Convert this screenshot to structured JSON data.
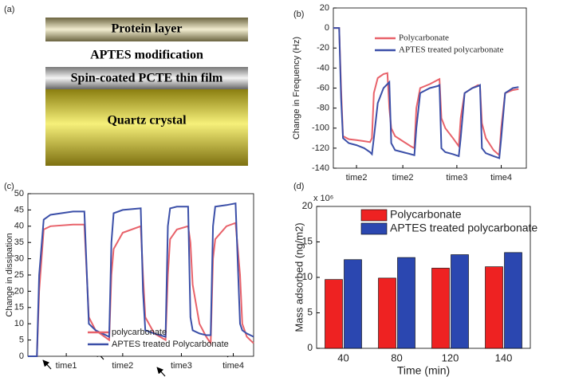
{
  "diagram": {
    "label": "(a)",
    "layers": [
      "Protein layer",
      "APTES modification",
      "Spin-coated PCTE thin film",
      "Quartz crystal"
    ]
  },
  "chart_data": [
    {
      "type": "line",
      "panel_label": "(b)",
      "ylabel": "Change in Frequency (Hz)",
      "x": [
        0,
        3,
        4,
        5,
        8,
        12,
        16,
        19,
        20,
        21,
        23,
        26,
        28,
        29,
        30,
        32,
        36,
        40,
        42,
        43,
        45,
        50,
        54,
        55,
        56,
        58,
        62,
        65,
        66,
        68,
        72,
        75,
        76,
        77,
        79,
        83,
        86,
        87,
        89,
        93,
        96
      ],
      "xlim": [
        0,
        100
      ],
      "xticks": [
        {
          "value": 12,
          "label": "time2"
        },
        {
          "value": 36,
          "label": "time2"
        },
        {
          "value": 64,
          "label": "time3"
        },
        {
          "value": 87,
          "label": "time4"
        }
      ],
      "ylim": [
        -140,
        20
      ],
      "yticks": [
        -140,
        -120,
        -100,
        -80,
        -60,
        -40,
        -20,
        0,
        20
      ],
      "legend": "upper right",
      "series": [
        {
          "name": "Polycarbonate",
          "color": "#e8626a",
          "values": [
            0,
            0,
            -60,
            -108,
            -111,
            -112,
            -113,
            -114,
            -110,
            -65,
            -50,
            -46,
            -45,
            -80,
            -100,
            -108,
            -113,
            -118,
            -120,
            -80,
            -60,
            -56,
            -52,
            -51,
            -90,
            -100,
            -110,
            -118,
            -90,
            -65,
            -60,
            -57,
            -58,
            -95,
            -110,
            -122,
            -127,
            -100,
            -65,
            -62,
            -61
          ]
        },
        {
          "name": "APTES treated polycarbonate",
          "color": "#3b4fa8",
          "values": [
            0,
            0,
            -70,
            -110,
            -115,
            -117,
            -120,
            -124,
            -126,
            -110,
            -75,
            -60,
            -56,
            -54,
            -115,
            -122,
            -124,
            -126,
            -127,
            -100,
            -65,
            -60,
            -58,
            -57,
            -120,
            -124,
            -126,
            -128,
            -110,
            -65,
            -60,
            -58,
            -57,
            -120,
            -125,
            -128,
            -130,
            -110,
            -65,
            -60,
            -59
          ]
        }
      ]
    },
    {
      "type": "line",
      "panel_label": "(c)",
      "ylabel": "Change in dissipation",
      "x": [
        0,
        4,
        5,
        7,
        10,
        20,
        25,
        27,
        30,
        36,
        37,
        38,
        42,
        50,
        51,
        52,
        56,
        61,
        62,
        63,
        66,
        71,
        72,
        73,
        76,
        79,
        81,
        82,
        83,
        88,
        92,
        94,
        95,
        97,
        100
      ],
      "xlim": [
        0,
        100
      ],
      "xticks": [
        {
          "value": 17,
          "label": "time1"
        },
        {
          "value": 42,
          "label": "time2"
        },
        {
          "value": 68,
          "label": "time3"
        },
        {
          "value": 91,
          "label": "time4"
        }
      ],
      "ylim": [
        0,
        50
      ],
      "yticks": [
        0,
        5,
        10,
        15,
        20,
        25,
        30,
        35,
        40,
        45,
        50
      ],
      "legend": "lower center",
      "series": [
        {
          "name": "polycarbonate",
          "color": "#e8626a",
          "values": [
            0,
            0,
            20,
            39,
            40,
            40.5,
            40.5,
            12,
            8,
            5,
            25,
            33,
            38,
            40,
            25,
            12,
            7,
            5,
            25,
            36,
            39,
            40,
            35,
            22,
            10,
            6,
            4,
            30,
            36,
            40,
            41,
            25,
            10,
            6,
            4
          ]
        },
        {
          "name": "APTES treated Polycarbonate",
          "color": "#3b4fa8",
          "values": [
            0,
            0,
            25,
            42,
            43.5,
            44.5,
            44.5,
            10,
            8,
            6,
            35,
            44,
            45,
            45.5,
            20,
            8,
            7,
            6,
            40,
            45.5,
            46,
            46,
            12,
            8,
            7,
            6.5,
            6.5,
            40,
            46,
            46.5,
            47,
            10,
            8,
            7,
            6
          ]
        }
      ]
    },
    {
      "type": "bar",
      "panel_label": "(d)",
      "ylabel": "Mass adsorbed (ng/m2)",
      "xlabel": "Time (min)",
      "axis_multiplier": "x 10⁶",
      "categories": [
        "40",
        "80",
        "120",
        "140"
      ],
      "ylim": [
        0,
        20
      ],
      "yticks": [
        0,
        5,
        10,
        15,
        20
      ],
      "legend": "upper center",
      "series": [
        {
          "name": "Polycarbonate",
          "color": "#ee2222",
          "values": [
            9.7,
            9.9,
            11.3,
            11.5
          ]
        },
        {
          "name": "APTES treated polycarbonate",
          "color": "#2b47b0",
          "values": [
            12.5,
            12.8,
            13.2,
            13.5
          ]
        }
      ]
    }
  ]
}
